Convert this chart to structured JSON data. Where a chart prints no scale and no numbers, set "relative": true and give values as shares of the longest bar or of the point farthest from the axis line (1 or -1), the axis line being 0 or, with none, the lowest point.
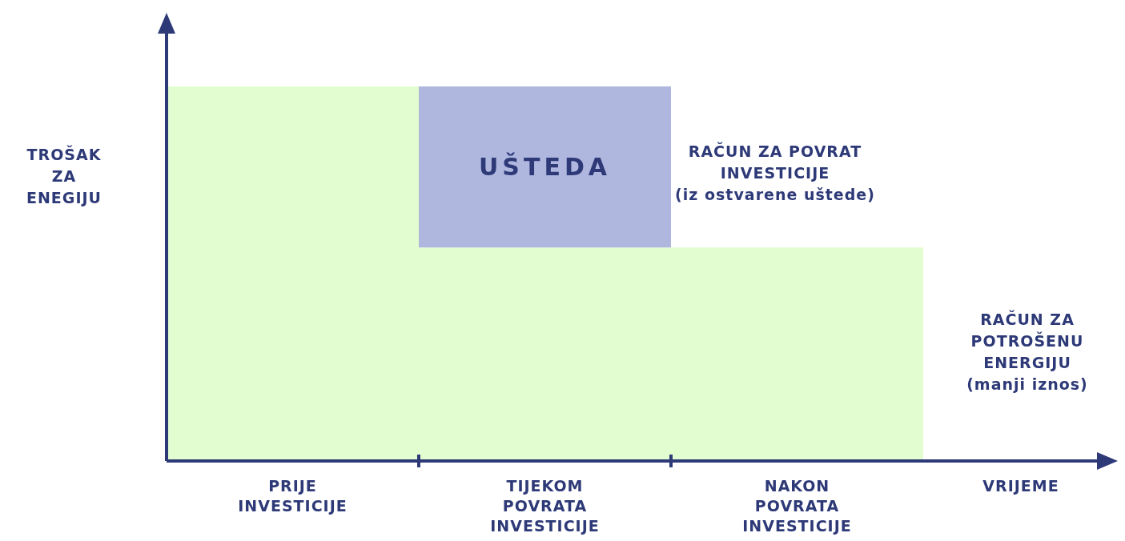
{
  "chart_data": {
    "type": "bar",
    "stacked": true,
    "relative": true,
    "ylabel": "TROŠAK\nZA\nENEGIJU",
    "xlabel": "VRIJEME",
    "categories": [
      "PRIJE\nINVESTICIJE",
      "TIJEKOM\nPOVRATA\nINVESTICIJE",
      "NAKON\nPOVRATA\nINVESTICIJE"
    ],
    "series": [
      {
        "color": "#e2fdd0",
        "values": [
          1,
          0.57,
          0.57
        ]
      },
      {
        "name": "UŠTEDA",
        "color": "#b0b7df",
        "values": [
          0,
          0.43,
          0
        ]
      }
    ],
    "annotations": [
      "RAČUN ZA POVRAT\nINVESTICIJE\n(iz ostvarene uštede)",
      "RAČUN ZA\nPOTROŠENU\nENERGIJU\n(manji iznos)"
    ]
  }
}
